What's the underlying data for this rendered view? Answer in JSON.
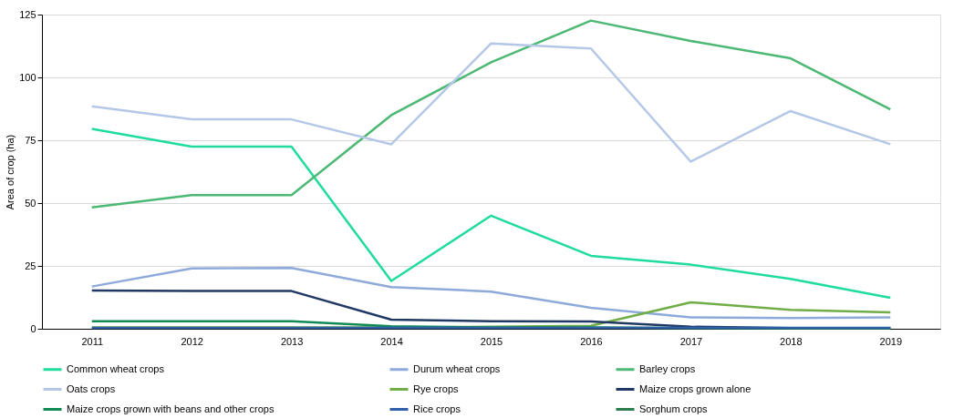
{
  "chart_data": {
    "type": "line",
    "ylabel": "Area of crop (ha)",
    "categories": [
      "2011",
      "2012",
      "2013",
      "2014",
      "2015",
      "2016",
      "2017",
      "2018",
      "2019"
    ],
    "ylim": [
      0,
      125
    ],
    "yticks": [
      0,
      25,
      50,
      75,
      100,
      125
    ],
    "grid": "y",
    "legend": "bottom",
    "marker": "none",
    "line_style": "solid",
    "series": [
      {
        "name": "Common wheat crops",
        "color": "#1fdc9a",
        "values": [
          79.5,
          72.5,
          72.5,
          19,
          45,
          29,
          25.5,
          19.8,
          12.3
        ]
      },
      {
        "name": "Durum wheat crops",
        "color": "#8eaadb",
        "values": [
          16.8,
          24,
          24.2,
          16.6,
          14.8,
          8.3,
          4.5,
          4.3,
          4.5
        ]
      },
      {
        "name": "Barley crops",
        "color": "#4cb874",
        "values": [
          48.3,
          53.2,
          53.2,
          85,
          106,
          122.6,
          114.5,
          107.6,
          87.3
        ]
      },
      {
        "name": "Oats crops",
        "color": "#b4c7e7",
        "values": [
          88.5,
          83.3,
          83.3,
          73.4,
          113.5,
          111.5,
          66.5,
          86.6,
          73.4
        ]
      },
      {
        "name": "Rye crops",
        "color": "#70ad47",
        "values": [
          0.5,
          0.5,
          0.5,
          0.5,
          0.8,
          1.2,
          10.5,
          7.5,
          6.5
        ]
      },
      {
        "name": "Maize crops grown alone",
        "color": "#203864",
        "values": [
          15.2,
          15,
          15,
          3.6,
          3,
          2.9,
          0.8,
          0.3,
          0.3
        ]
      },
      {
        "name": "Maize crops grown with beans and other crops",
        "color": "#0f8a55",
        "values": [
          3,
          3,
          3,
          1,
          0.5,
          0.5,
          0.3,
          0.2,
          0.2
        ]
      },
      {
        "name": "Rice crops",
        "color": "#2e5fa8",
        "values": [
          0.4,
          0.4,
          0.4,
          0.4,
          0.4,
          0.4,
          0.4,
          0.4,
          0.4
        ]
      },
      {
        "name": "Sorghum crops",
        "color": "#2e7d4f",
        "values": [
          null,
          null,
          null,
          null,
          null,
          null,
          null,
          null,
          null
        ]
      }
    ]
  }
}
